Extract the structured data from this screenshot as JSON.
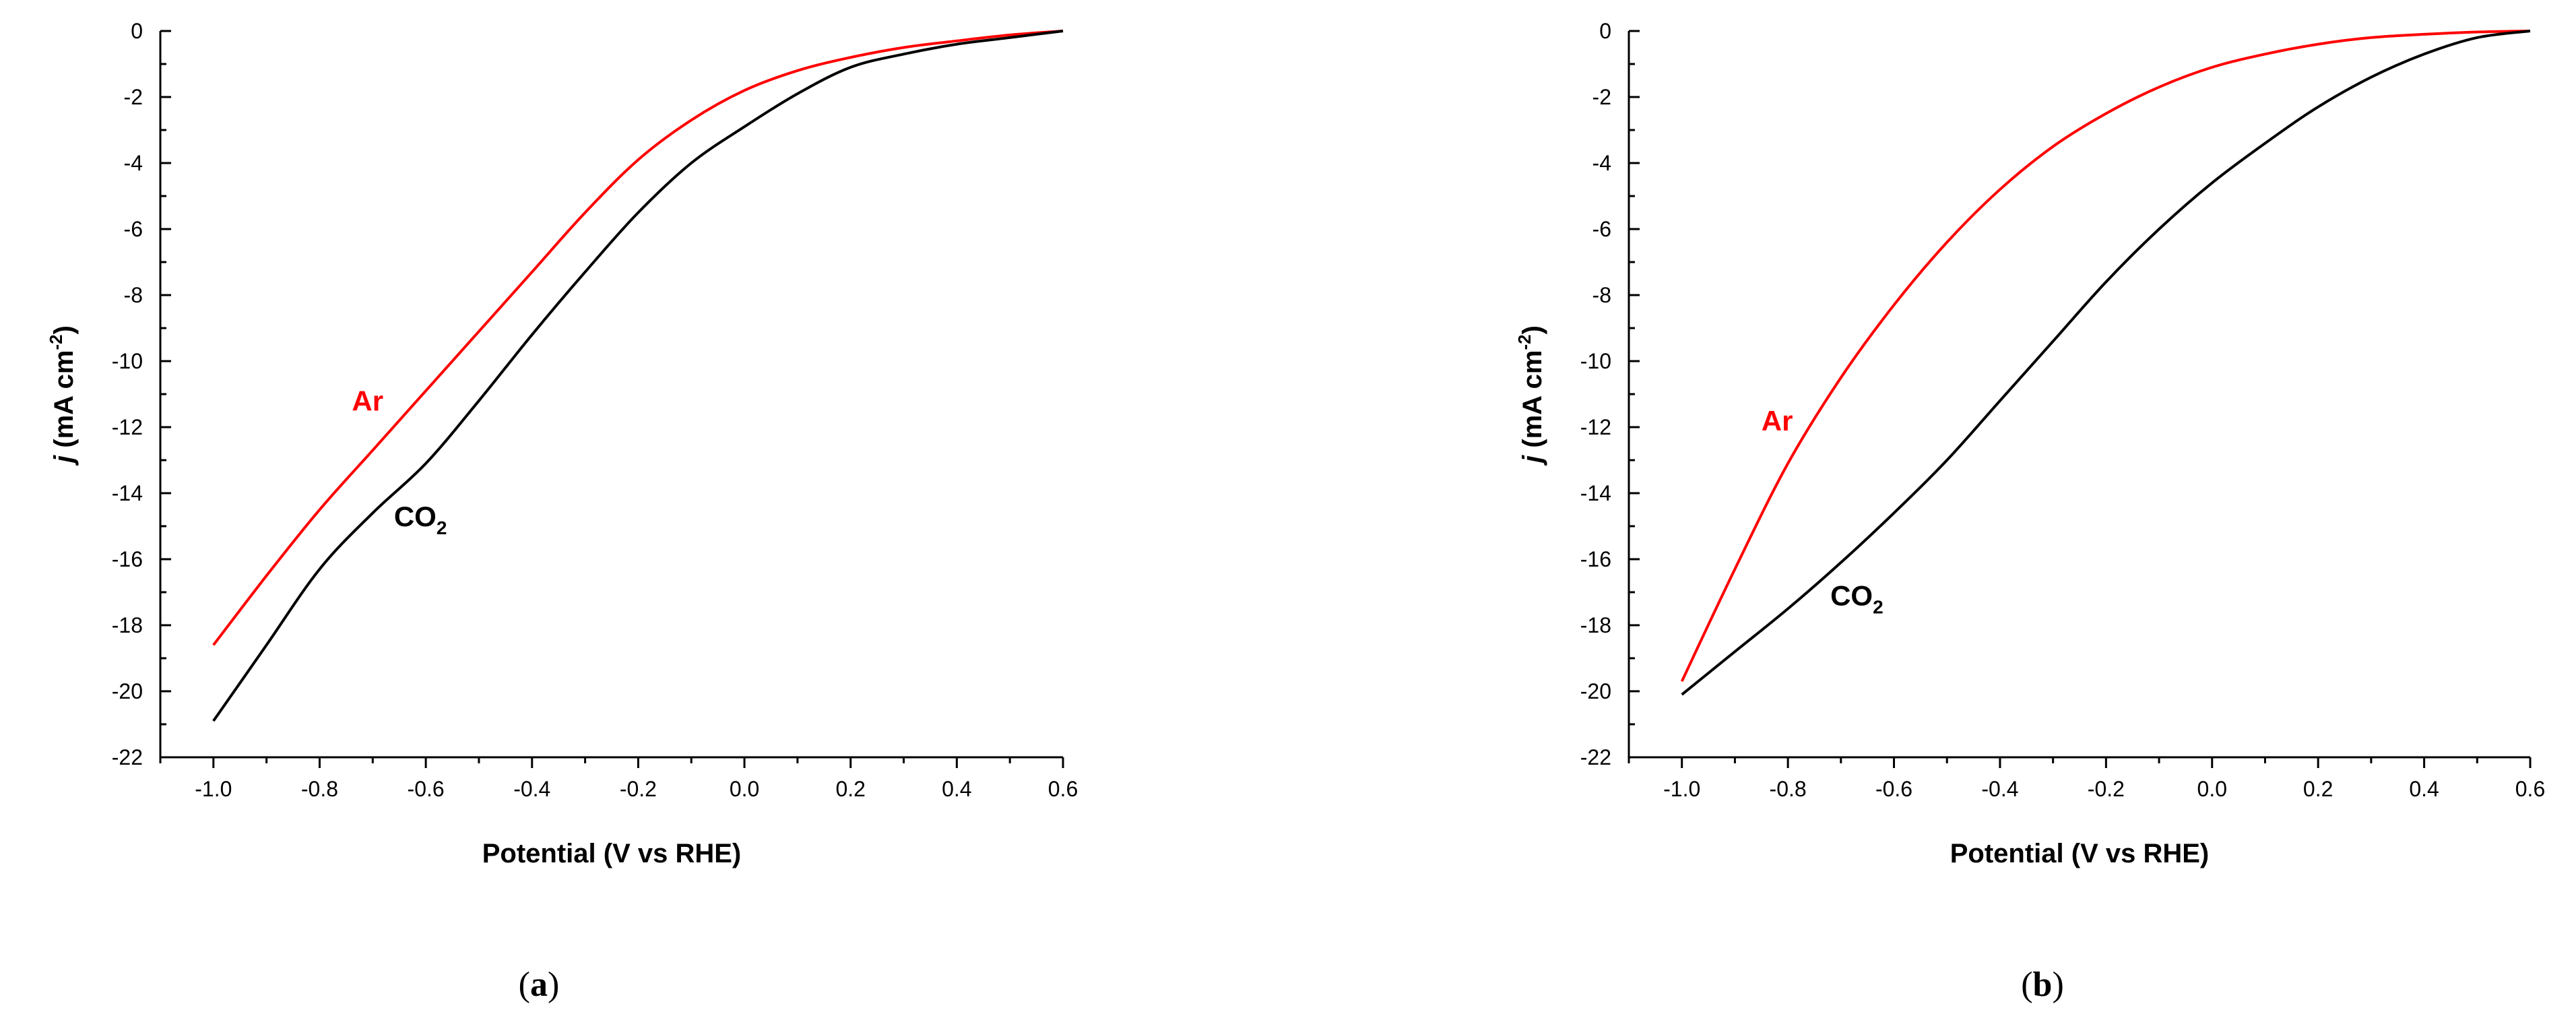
{
  "chart_data": [
    {
      "type": "line",
      "caption_letter": "a",
      "xlabel": "Potential (V vs RHE)",
      "ylabel_italic": "j",
      "ylabel_rest": "(mA cm",
      "ylabel_sup": "-2",
      "ylabel_end": ")",
      "xlim": [
        -1.1,
        0.6
      ],
      "ylim": [
        -22,
        0
      ],
      "xticks": [
        -1.0,
        -0.8,
        -0.6,
        -0.4,
        -0.2,
        0.0,
        0.2,
        0.4,
        0.6
      ],
      "xtick_labels": [
        "-1.0",
        "-0.8",
        "-0.6",
        "-0.4",
        "-0.2",
        "0.0",
        "0.2",
        "0.4",
        "0.6"
      ],
      "yticks": [
        0,
        -2,
        -4,
        -6,
        -8,
        -10,
        -12,
        -14,
        -16,
        -18,
        -20,
        -22
      ],
      "ytick_labels": [
        "0",
        "-2",
        "-4",
        "-6",
        "-8",
        "-10",
        "-12",
        "-14",
        "-16",
        "-18",
        "-20",
        "-22"
      ],
      "grid": false,
      "series": [
        {
          "name": "Ar",
          "color": "#ff0000",
          "x": [
            -1.0,
            -0.9,
            -0.8,
            -0.7,
            -0.6,
            -0.5,
            -0.4,
            -0.3,
            -0.2,
            -0.1,
            0.0,
            0.1,
            0.2,
            0.3,
            0.4,
            0.5,
            0.6
          ],
          "y": [
            -18.6,
            -16.5,
            -14.5,
            -12.7,
            -10.9,
            -9.1,
            -7.3,
            -5.5,
            -3.9,
            -2.7,
            -1.8,
            -1.2,
            -0.8,
            -0.5,
            -0.3,
            -0.12,
            0
          ]
        },
        {
          "name": "CO",
          "name_sub": "2",
          "color": "#000000",
          "x": [
            -1.0,
            -0.9,
            -0.8,
            -0.7,
            -0.6,
            -0.5,
            -0.4,
            -0.3,
            -0.2,
            -0.1,
            0.0,
            0.1,
            0.2,
            0.3,
            0.4,
            0.5,
            0.6
          ],
          "y": [
            -20.9,
            -18.6,
            -16.3,
            -14.6,
            -13.1,
            -11.2,
            -9.2,
            -7.3,
            -5.5,
            -4.0,
            -2.9,
            -1.9,
            -1.1,
            -0.7,
            -0.4,
            -0.2,
            0
          ]
        }
      ]
    },
    {
      "type": "line",
      "caption_letter": "b",
      "xlabel": "Potential (V vs RHE)",
      "ylabel_italic": "j",
      "ylabel_rest": "(mA cm",
      "ylabel_sup": "-2",
      "ylabel_end": ")",
      "xlim": [
        -1.1,
        0.6
      ],
      "ylim": [
        -22,
        0
      ],
      "xticks": [
        -1.0,
        -0.8,
        -0.6,
        -0.4,
        -0.2,
        0.0,
        0.2,
        0.4,
        0.6
      ],
      "xtick_labels": [
        "-1.0",
        "-0.8",
        "-0.6",
        "-0.4",
        "-0.2",
        "0.0",
        "0.2",
        "0.4",
        "0.6"
      ],
      "yticks": [
        0,
        -2,
        -4,
        -6,
        -8,
        -10,
        -12,
        -14,
        -16,
        -18,
        -20,
        -22
      ],
      "ytick_labels": [
        "0",
        "-2",
        "-4",
        "-6",
        "-8",
        "-10",
        "-12",
        "-14",
        "-16",
        "-18",
        "-20",
        "-22"
      ],
      "grid": false,
      "series": [
        {
          "name": "Ar",
          "color": "#ff0000",
          "x": [
            -1.0,
            -0.9,
            -0.8,
            -0.7,
            -0.6,
            -0.5,
            -0.4,
            -0.3,
            -0.2,
            -0.1,
            0.0,
            0.1,
            0.2,
            0.3,
            0.4,
            0.5,
            0.6
          ],
          "y": [
            -19.7,
            -16.3,
            -13.1,
            -10.5,
            -8.3,
            -6.4,
            -4.8,
            -3.5,
            -2.5,
            -1.7,
            -1.1,
            -0.7,
            -0.4,
            -0.2,
            -0.1,
            -0.03,
            0
          ]
        },
        {
          "name": "CO",
          "name_sub": "2",
          "color": "#000000",
          "x": [
            -1.0,
            -0.9,
            -0.8,
            -0.7,
            -0.6,
            -0.5,
            -0.4,
            -0.3,
            -0.2,
            -0.1,
            0.0,
            0.1,
            0.2,
            0.3,
            0.4,
            0.5,
            0.6
          ],
          "y": [
            -20.1,
            -18.8,
            -17.5,
            -16.1,
            -14.6,
            -13.0,
            -11.2,
            -9.4,
            -7.6,
            -6.0,
            -4.6,
            -3.4,
            -2.3,
            -1.4,
            -0.7,
            -0.2,
            0
          ]
        }
      ]
    }
  ]
}
